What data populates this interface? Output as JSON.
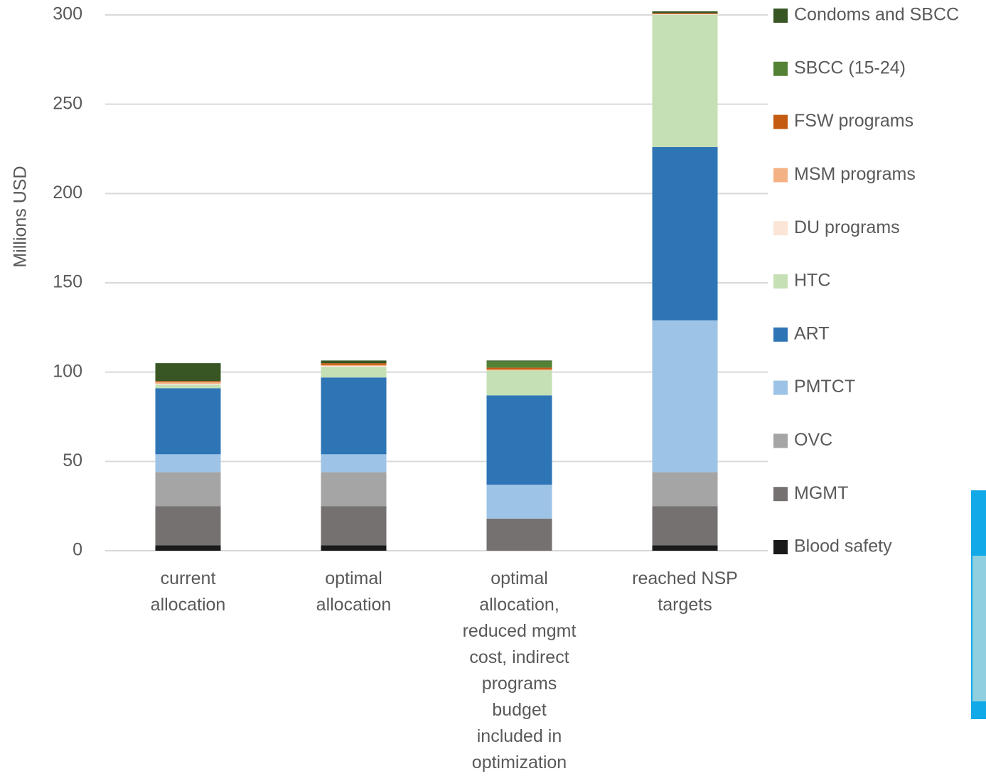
{
  "chart_data": {
    "type": "stacked_bar",
    "y_label": "Millions USD",
    "categories": [
      "current allocation",
      "optimal allocation",
      "optimal allocation, reduced mgmt cost, indirect programs budget included in optimization",
      "reached NSP targets"
    ],
    "series": [
      {
        "name": "Blood safety",
        "color": "#1a1a1a",
        "values": [
          3,
          3,
          0,
          3
        ]
      },
      {
        "name": "MGMT",
        "color": "#767171",
        "values": [
          22,
          22,
          18,
          22
        ]
      },
      {
        "name": "OVC",
        "color": "#a5a5a5",
        "values": [
          19,
          19,
          0,
          19
        ]
      },
      {
        "name": "PMTCT",
        "color": "#9dc3e6",
        "values": [
          10,
          10,
          19,
          85
        ]
      },
      {
        "name": "ART",
        "color": "#2e75b6",
        "values": [
          37,
          43,
          50,
          97
        ]
      },
      {
        "name": "HTC",
        "color": "#c5e0b4",
        "values": [
          2,
          6,
          14,
          74
        ]
      },
      {
        "name": "DU programs",
        "color": "#fbe5d6",
        "values": [
          0.5,
          0.5,
          0,
          0.5
        ]
      },
      {
        "name": "MSM programs",
        "color": "#f4b183",
        "values": [
          1,
          0.5,
          0.5,
          0
        ]
      },
      {
        "name": "FSW programs",
        "color": "#c55a11",
        "values": [
          0.5,
          1,
          1,
          0.5
        ]
      },
      {
        "name": "SBCC (15-24)",
        "color": "#548235",
        "values": [
          0,
          0,
          3.5,
          0
        ]
      },
      {
        "name": "Condoms and SBCC",
        "color": "#375623",
        "values": [
          10,
          1.5,
          0.5,
          1
        ]
      }
    ],
    "ylim": [
      0,
      300
    ],
    "yticks": [
      0,
      50,
      100,
      150,
      200,
      250,
      300
    ],
    "grid": true
  }
}
